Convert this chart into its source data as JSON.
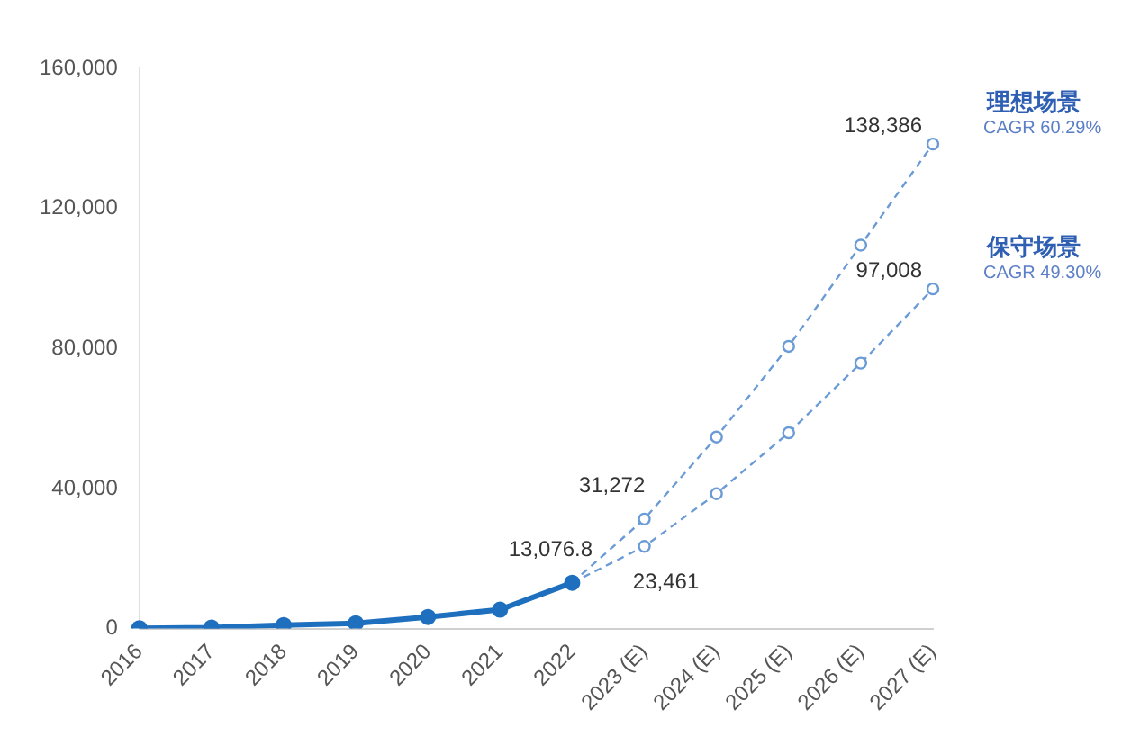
{
  "chart_data": {
    "type": "line",
    "categories": [
      "2016",
      "2017",
      "2018",
      "2019",
      "2020",
      "2021",
      "2022",
      "2023 (E)",
      "2024 (E)",
      "2025 (E)",
      "2026 (E)",
      "2027 (E)"
    ],
    "series": [
      {
        "color": "#1f6fbf",
        "line_style": "solid",
        "values": [
          100,
          300,
          1000,
          1500,
          3300,
          5400,
          13076.8,
          null,
          null,
          null,
          null,
          null
        ],
        "value_labels": [
          null,
          null,
          null,
          null,
          null,
          null,
          "13,076.8",
          null,
          null,
          null,
          null,
          null
        ]
      },
      {
        "name": "理想场景",
        "color": "#6a9bd6",
        "line_style": "dashed",
        "values": [
          null,
          null,
          null,
          null,
          null,
          null,
          13076.8,
          31272,
          54700,
          80600,
          109500,
          138386
        ],
        "value_labels": [
          null,
          null,
          null,
          null,
          null,
          null,
          null,
          "31,272",
          null,
          null,
          null,
          "138,386"
        ]
      },
      {
        "name": "保守场景",
        "color": "#6a9bd6",
        "line_style": "dashed",
        "values": [
          null,
          null,
          null,
          null,
          null,
          null,
          13076.8,
          23461,
          38500,
          55900,
          75800,
          97008
        ],
        "value_labels": [
          null,
          null,
          null,
          null,
          null,
          null,
          null,
          "23,461",
          null,
          null,
          null,
          "97,008"
        ]
      }
    ],
    "annotations": [
      {
        "text": "CAGR 60.29%",
        "x": "2027 (E)",
        "y": 138386
      },
      {
        "text": "CAGR 49.30%",
        "x": "2027 (E)",
        "y": 97008
      }
    ],
    "ylim": [
      0,
      160000
    ],
    "yticks": [
      0,
      {
        "value": 40000,
        "label": "40,000"
      },
      {
        "value": 80000,
        "label": "80,000"
      },
      {
        "value": 120000,
        "label": "120,000"
      },
      {
        "value": 160000,
        "label": "160,000"
      }
    ],
    "marker": "circle",
    "legend": false
  }
}
